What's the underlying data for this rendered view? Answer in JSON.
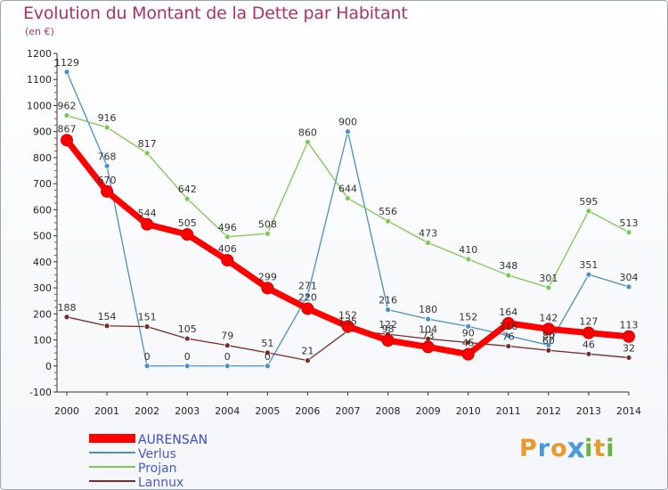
{
  "header": {
    "title": "Evolution du Montant de la Dette par Habitant",
    "unit": "(en €)"
  },
  "logo": {
    "letters": [
      "P",
      "r",
      "o",
      "x",
      "i",
      "t",
      "i"
    ],
    "colors": [
      "#e89a2a",
      "#4a9ad8",
      "#e89a2a",
      "#4a9ad8",
      "#6db33f",
      "#e89a2a",
      "#6db33f"
    ]
  },
  "chart_data": {
    "type": "line",
    "title": "Evolution du Montant de la Dette par Habitant",
    "ylabel": "(en €)",
    "xlabel": "",
    "x": [
      "2000",
      "2001",
      "2002",
      "2003",
      "2004",
      "2005",
      "2006",
      "2007",
      "2008",
      "2009",
      "2010",
      "2011",
      "2012",
      "2013",
      "2014"
    ],
    "ylim": [
      -100,
      1200
    ],
    "yticks": [
      "-100",
      "0",
      "100",
      "200",
      "300",
      "400",
      "500",
      "600",
      "700",
      "800",
      "900",
      "1000",
      "1100",
      "1200"
    ],
    "grid": false,
    "legend_position": "bottom-left",
    "series": [
      {
        "name": "AURENSAN",
        "color": "#ff0000",
        "values": [
          867,
          670,
          544,
          505,
          406,
          299,
          220,
          152,
          98,
          73,
          45,
          164,
          142,
          127,
          113
        ],
        "labels": [
          "867",
          "670",
          "544",
          "505",
          "406",
          "299",
          "220",
          "152",
          "98",
          "73",
          "45",
          "164",
          "142",
          "127",
          "113"
        ]
      },
      {
        "name": "Verlus",
        "color": "#4a8fc8",
        "values": [
          1129,
          768,
          0,
          0,
          0,
          0,
          271,
          900,
          216,
          180,
          152,
          116,
          80,
          351,
          304
        ],
        "labels": [
          "1129",
          "768",
          "0",
          "0",
          "0",
          "0",
          "271",
          "900",
          "216",
          "180",
          "152",
          "116",
          "80",
          "351",
          "304"
        ]
      },
      {
        "name": "Projan",
        "color": "#7ec850",
        "values": [
          962,
          916,
          817,
          642,
          496,
          508,
          860,
          644,
          556,
          473,
          410,
          348,
          301,
          595,
          513
        ],
        "labels": [
          "962",
          "916",
          "817",
          "642",
          "496",
          "508",
          "860",
          "644",
          "556",
          "473",
          "410",
          "348",
          "301",
          "595",
          "513"
        ]
      },
      {
        "name": "Lannux",
        "color": "#7a2a2a",
        "values": [
          188,
          154,
          151,
          105,
          79,
          51,
          21,
          135,
          122,
          104,
          90,
          76,
          60,
          46,
          32
        ],
        "labels": [
          "188",
          "154",
          "151",
          "105",
          "79",
          "51",
          "21",
          "135",
          "122",
          "104",
          "90",
          "76",
          "60",
          "46",
          "32"
        ]
      }
    ]
  }
}
